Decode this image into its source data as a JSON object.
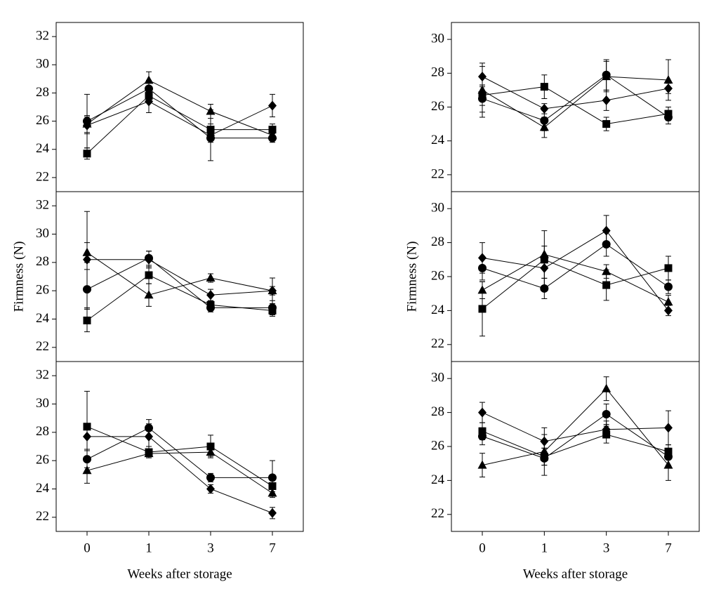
{
  "chart_data": [
    {
      "type": "line",
      "ylim": [
        21,
        33
      ],
      "yticks": [
        22,
        24,
        26,
        28,
        30,
        32
      ],
      "series": [
        {
          "marker": "circle",
          "color": "#000",
          "values": [
            26.0,
            28.3,
            24.8,
            24.8
          ],
          "errors": [
            1.9,
            0.6,
            0.3,
            0.3
          ]
        },
        {
          "marker": "square",
          "color": "#000",
          "values": [
            23.7,
            27.8,
            25.4,
            25.4
          ],
          "errors": [
            0.4,
            0.5,
            0.4,
            0.4
          ]
        },
        {
          "marker": "triangle",
          "color": "#000",
          "values": [
            25.8,
            28.9,
            26.7,
            25.0
          ],
          "errors": [
            0.6,
            0.6,
            0.5,
            0.3
          ]
        },
        {
          "marker": "diamond",
          "color": "#000",
          "values": [
            25.7,
            27.4,
            25.0,
            27.1
          ],
          "errors": [
            0.6,
            0.8,
            1.8,
            0.8
          ]
        }
      ]
    },
    {
      "type": "line",
      "ylabel": "Firmness (N)",
      "ylim": [
        21,
        33
      ],
      "yticks": [
        22,
        24,
        26,
        28,
        30,
        32
      ],
      "series": [
        {
          "marker": "circle",
          "color": "#000",
          "values": [
            26.1,
            28.3,
            24.8,
            24.8
          ],
          "errors": [
            1.4,
            0.5,
            0.3,
            0.5
          ]
        },
        {
          "marker": "square",
          "color": "#000",
          "values": [
            23.9,
            27.1,
            25.0,
            24.6
          ],
          "errors": [
            0.8,
            0.6,
            0.3,
            0.4
          ]
        },
        {
          "marker": "triangle",
          "color": "#000",
          "values": [
            28.7,
            25.7,
            26.9,
            26.0
          ],
          "errors": [
            0.7,
            0.8,
            0.3,
            0.3
          ]
        },
        {
          "marker": "diamond",
          "color": "#000",
          "values": [
            28.2,
            28.2,
            25.7,
            26.0
          ],
          "errors": [
            3.4,
            0.6,
            0.4,
            0.9
          ]
        }
      ]
    },
    {
      "type": "line",
      "xlabel": "Weeks after storage",
      "categories": [
        "0",
        "1",
        "3",
        "7"
      ],
      "ylim": [
        21,
        33
      ],
      "yticks": [
        22,
        24,
        26,
        28,
        30,
        32
      ],
      "series": [
        {
          "marker": "circle",
          "color": "#000",
          "values": [
            26.1,
            28.3,
            24.8,
            24.8
          ],
          "errors": [
            0.6,
            0.6,
            0.3,
            1.2
          ]
        },
        {
          "marker": "square",
          "color": "#000",
          "values": [
            28.4,
            26.6,
            27.0,
            24.2
          ],
          "errors": [
            2.5,
            0.4,
            0.8,
            0.4
          ]
        },
        {
          "marker": "triangle",
          "color": "#000",
          "values": [
            25.3,
            26.5,
            26.6,
            23.7
          ],
          "errors": [
            0.9,
            0.3,
            0.3,
            0.3
          ]
        },
        {
          "marker": "diamond",
          "color": "#000",
          "values": [
            27.7,
            27.7,
            24.0,
            22.3
          ],
          "errors": [
            0.9,
            0.9,
            0.3,
            0.4
          ]
        }
      ]
    },
    {
      "type": "line",
      "ylim": [
        21,
        31
      ],
      "yticks": [
        22,
        24,
        26,
        28,
        30
      ],
      "series": [
        {
          "marker": "circle",
          "color": "#000",
          "values": [
            26.5,
            25.2,
            27.9,
            25.4
          ],
          "errors": [
            0.8,
            0.6,
            0.9,
            0.4
          ]
        },
        {
          "marker": "square",
          "color": "#000",
          "values": [
            26.7,
            27.2,
            25.0,
            25.6
          ],
          "errors": [
            0.6,
            0.7,
            0.4,
            0.4
          ]
        },
        {
          "marker": "triangle",
          "color": "#000",
          "values": [
            27.0,
            24.8,
            27.8,
            27.6
          ],
          "errors": [
            1.6,
            0.6,
            0.9,
            1.2
          ]
        },
        {
          "marker": "diamond",
          "color": "#000",
          "values": [
            27.8,
            25.9,
            26.4,
            27.1
          ],
          "errors": [
            0.6,
            0.3,
            0.6,
            0.3
          ]
        }
      ]
    },
    {
      "type": "line",
      "ylabel": "Firmness (N)",
      "ylim": [
        21,
        31
      ],
      "yticks": [
        22,
        24,
        26,
        28,
        30
      ],
      "series": [
        {
          "marker": "circle",
          "color": "#000",
          "values": [
            26.5,
            25.3,
            27.9,
            25.4
          ],
          "errors": [
            0.7,
            0.6,
            0.7,
            0.4
          ]
        },
        {
          "marker": "square",
          "color": "#000",
          "values": [
            24.1,
            27.0,
            25.5,
            26.5
          ],
          "errors": [
            1.6,
            1.7,
            0.9,
            0.7
          ]
        },
        {
          "marker": "triangle",
          "color": "#000",
          "values": [
            25.2,
            27.3,
            26.3,
            24.5
          ],
          "errors": [
            0.5,
            0.5,
            0.4,
            0.4
          ]
        },
        {
          "marker": "diamond",
          "color": "#000",
          "values": [
            27.1,
            26.5,
            28.7,
            24.0
          ],
          "errors": [
            0.9,
            0.6,
            0.9,
            0.3
          ]
        }
      ]
    },
    {
      "type": "line",
      "xlabel": "Weeks after storage",
      "categories": [
        "0",
        "1",
        "3",
        "7"
      ],
      "ylim": [
        21,
        31
      ],
      "yticks": [
        22,
        24,
        26,
        28,
        30
      ],
      "series": [
        {
          "marker": "circle",
          "color": "#000",
          "values": [
            26.6,
            25.3,
            27.9,
            25.4
          ],
          "errors": [
            0.5,
            0.4,
            0.6,
            0.5
          ]
        },
        {
          "marker": "square",
          "color": "#000",
          "values": [
            26.9,
            25.4,
            26.7,
            25.7
          ],
          "errors": [
            0.5,
            0.5,
            0.5,
            0.4
          ]
        },
        {
          "marker": "triangle",
          "color": "#000",
          "values": [
            24.9,
            25.7,
            29.4,
            24.9
          ],
          "errors": [
            0.7,
            1.4,
            0.7,
            0.9
          ]
        },
        {
          "marker": "diamond",
          "color": "#000",
          "values": [
            28.0,
            26.3,
            27.0,
            27.1
          ],
          "errors": [
            0.6,
            0.4,
            0.5,
            1.0
          ]
        }
      ]
    }
  ]
}
